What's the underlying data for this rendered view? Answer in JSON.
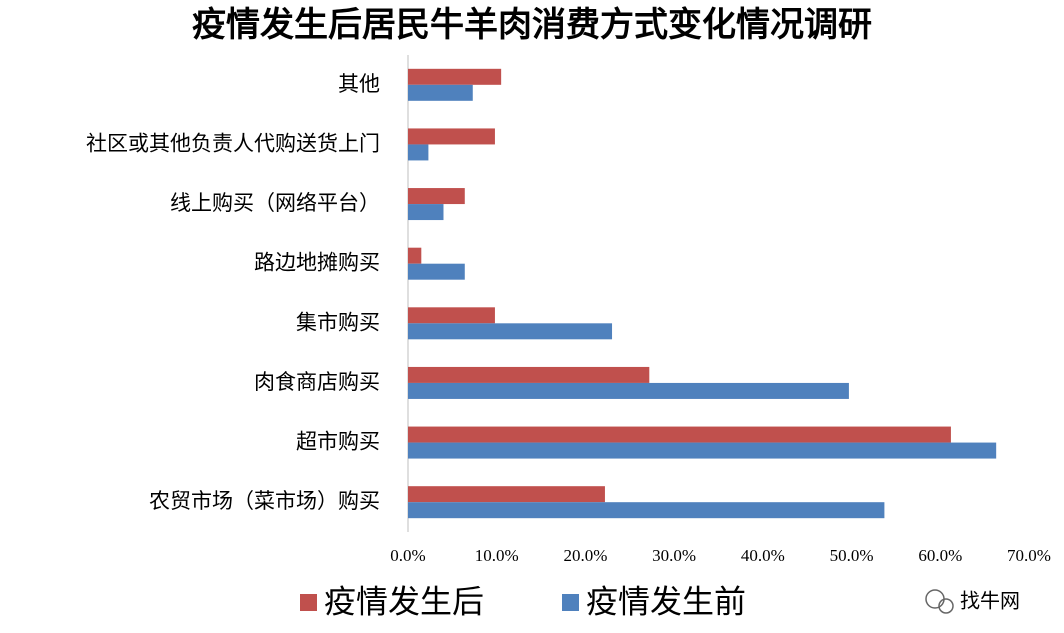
{
  "chart_data": {
    "type": "bar",
    "orientation": "horizontal",
    "title": "疫情发生后居民牛羊肉消费方式变化情况调研",
    "categories": [
      "其他",
      "社区或其他负责人代购送货上门",
      "线上购买（网络平台）",
      "路边地摊购买",
      "集市购买",
      "肉食商店购买",
      "超市购买",
      "农贸市场（菜市场）购买"
    ],
    "series": [
      {
        "name": "疫情发生后",
        "color": "#c0504d",
        "values": [
          10.5,
          9.8,
          6.4,
          1.5,
          9.8,
          27.2,
          61.2,
          22.2
        ]
      },
      {
        "name": "疫情发生前",
        "color": "#4f81bd",
        "values": [
          7.3,
          2.3,
          4.0,
          6.4,
          23.0,
          49.7,
          66.3,
          53.7
        ]
      }
    ],
    "xlim": [
      0,
      70
    ],
    "xticks": [
      {
        "value": 0,
        "label": "0.0%"
      },
      {
        "value": 10,
        "label": "10.0%"
      },
      {
        "value": 20,
        "label": "20.0%"
      },
      {
        "value": 30,
        "label": "30.0%"
      },
      {
        "value": 40,
        "label": "40.0%"
      },
      {
        "value": 50,
        "label": "50.0%"
      },
      {
        "value": 60,
        "label": "60.0%"
      },
      {
        "value": 70,
        "label": "70.0%"
      }
    ],
    "grid": false,
    "legend": "bottom",
    "watermark": "找牛网"
  }
}
